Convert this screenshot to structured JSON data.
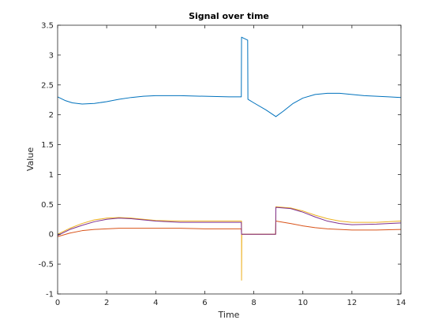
{
  "chart_data": {
    "type": "line",
    "title": "Signal over time",
    "xlabel": "Time",
    "ylabel": "Value",
    "xlim": [
      0,
      14
    ],
    "ylim": [
      -1,
      3.5
    ],
    "xticks": [
      0,
      2,
      4,
      6,
      8,
      10,
      12,
      14
    ],
    "yticks": [
      -1,
      -0.5,
      0,
      0.5,
      1,
      1.5,
      2,
      2.5,
      3,
      3.5
    ],
    "grid": false,
    "legend": "none",
    "series": [
      {
        "color": "#0072BD",
        "x": [
          0,
          0.3,
          0.6,
          1.0,
          1.5,
          2.0,
          2.5,
          3.0,
          3.5,
          4.0,
          5.0,
          6.0,
          7.0,
          7.49,
          7.5,
          7.6,
          7.7,
          7.75,
          7.76,
          8.0,
          8.5,
          8.9,
          9.2,
          9.6,
          10.0,
          10.5,
          11.0,
          11.5,
          12.0,
          12.5,
          13.0,
          13.5,
          14.0
        ],
        "y": [
          2.3,
          2.24,
          2.2,
          2.18,
          2.19,
          2.22,
          2.26,
          2.29,
          2.31,
          2.32,
          2.32,
          2.31,
          2.3,
          2.3,
          3.3,
          3.28,
          3.26,
          3.25,
          2.26,
          2.2,
          2.08,
          1.97,
          2.06,
          2.19,
          2.28,
          2.34,
          2.36,
          2.36,
          2.34,
          2.32,
          2.31,
          2.3,
          2.29
        ]
      },
      {
        "color": "#D95319",
        "x": [
          0,
          0.5,
          1.0,
          1.5,
          2.0,
          2.5,
          3.0,
          4.0,
          5.0,
          6.0,
          7.0,
          7.49,
          7.5,
          8.89,
          8.9,
          9.5,
          10.0,
          10.5,
          11.0,
          12.0,
          13.0,
          14.0
        ],
        "y": [
          -0.04,
          0.02,
          0.06,
          0.08,
          0.09,
          0.1,
          0.1,
          0.1,
          0.1,
          0.09,
          0.09,
          0.09,
          0.0,
          0.0,
          0.22,
          0.18,
          0.14,
          0.11,
          0.09,
          0.07,
          0.07,
          0.08
        ]
      },
      {
        "color": "#EDB120",
        "x": [
          0,
          0.5,
          1.0,
          1.5,
          2.0,
          2.5,
          3.0,
          3.5,
          4.0,
          5.0,
          6.0,
          7.0,
          7.49,
          7.5,
          7.5,
          7.51,
          8.89,
          8.9,
          9.5,
          10.0,
          10.5,
          11.0,
          11.5,
          12.0,
          13.0,
          14.0
        ],
        "y": [
          0.0,
          0.1,
          0.18,
          0.24,
          0.27,
          0.28,
          0.27,
          0.25,
          0.23,
          0.22,
          0.22,
          0.22,
          0.22,
          0.22,
          -0.77,
          0.0,
          0.0,
          0.46,
          0.44,
          0.39,
          0.32,
          0.26,
          0.22,
          0.2,
          0.2,
          0.22
        ]
      },
      {
        "color": "#7E2F8E",
        "x": [
          0,
          0.5,
          1.0,
          1.5,
          2.0,
          2.5,
          3.0,
          3.5,
          4.0,
          5.0,
          6.0,
          7.0,
          7.49,
          7.5,
          8.89,
          8.9,
          9.5,
          10.0,
          10.5,
          11.0,
          11.5,
          12.0,
          13.0,
          14.0
        ],
        "y": [
          -0.02,
          0.08,
          0.15,
          0.21,
          0.25,
          0.27,
          0.26,
          0.24,
          0.22,
          0.2,
          0.2,
          0.2,
          0.2,
          0.0,
          0.0,
          0.45,
          0.43,
          0.37,
          0.29,
          0.22,
          0.18,
          0.16,
          0.17,
          0.19
        ]
      }
    ]
  }
}
